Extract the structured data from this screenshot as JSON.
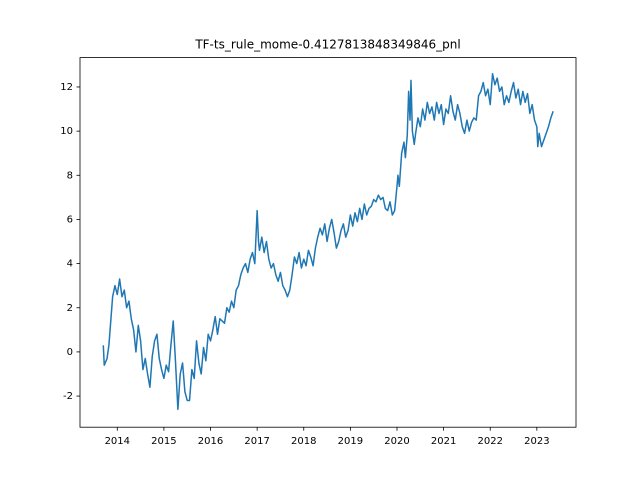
{
  "chart_data": {
    "type": "line",
    "title": "TF-ts_rule_mome-0.4127813848349846_pnl",
    "color": "#1f77b4",
    "x": [
      2013.7,
      2013.72,
      2013.78,
      2013.82,
      2013.9,
      2013.95,
      2014.0,
      2014.05,
      2014.1,
      2014.15,
      2014.2,
      2014.25,
      2014.3,
      2014.35,
      2014.4,
      2014.45,
      2014.5,
      2014.55,
      2014.6,
      2014.65,
      2014.7,
      2014.75,
      2014.8,
      2014.85,
      2014.9,
      2014.95,
      2015.0,
      2015.05,
      2015.1,
      2015.15,
      2015.2,
      2015.25,
      2015.3,
      2015.35,
      2015.4,
      2015.45,
      2015.5,
      2015.55,
      2015.6,
      2015.65,
      2015.7,
      2015.75,
      2015.8,
      2015.85,
      2015.9,
      2015.95,
      2016.0,
      2016.05,
      2016.1,
      2016.15,
      2016.2,
      2016.3,
      2016.35,
      2016.4,
      2016.45,
      2016.5,
      2016.55,
      2016.6,
      2016.65,
      2016.7,
      2016.75,
      2016.8,
      2016.85,
      2016.9,
      2016.95,
      2017.0,
      2017.03,
      2017.05,
      2017.1,
      2017.15,
      2017.2,
      2017.25,
      2017.3,
      2017.35,
      2017.4,
      2017.45,
      2017.5,
      2017.55,
      2017.6,
      2017.65,
      2017.7,
      2017.75,
      2017.8,
      2017.85,
      2017.9,
      2017.95,
      2018.0,
      2018.05,
      2018.1,
      2018.15,
      2018.2,
      2018.25,
      2018.3,
      2018.35,
      2018.4,
      2018.45,
      2018.5,
      2018.55,
      2018.6,
      2018.65,
      2018.7,
      2018.75,
      2018.8,
      2018.85,
      2018.9,
      2018.95,
      2019.0,
      2019.05,
      2019.1,
      2019.15,
      2019.2,
      2019.25,
      2019.3,
      2019.35,
      2019.4,
      2019.45,
      2019.5,
      2019.55,
      2019.6,
      2019.65,
      2019.7,
      2019.75,
      2019.8,
      2019.85,
      2019.9,
      2019.95,
      2020.0,
      2020.02,
      2020.05,
      2020.1,
      2020.15,
      2020.18,
      2020.22,
      2020.25,
      2020.28,
      2020.3,
      2020.33,
      2020.37,
      2020.4,
      2020.45,
      2020.5,
      2020.55,
      2020.6,
      2020.65,
      2020.7,
      2020.75,
      2020.8,
      2020.85,
      2020.9,
      2020.95,
      2021.0,
      2021.05,
      2021.1,
      2021.15,
      2021.2,
      2021.25,
      2021.3,
      2021.35,
      2021.4,
      2021.45,
      2021.5,
      2021.55,
      2021.6,
      2021.65,
      2021.7,
      2021.75,
      2021.8,
      2021.85,
      2021.9,
      2021.95,
      2022.0,
      2022.05,
      2022.1,
      2022.15,
      2022.2,
      2022.25,
      2022.3,
      2022.35,
      2022.4,
      2022.45,
      2022.5,
      2022.55,
      2022.6,
      2022.65,
      2022.7,
      2022.75,
      2022.8,
      2022.85,
      2022.9,
      2022.95,
      2023.0,
      2023.02,
      2023.05,
      2023.1,
      2023.15,
      2023.2,
      2023.25,
      2023.3,
      2023.35
    ],
    "values": [
      0.3,
      -0.6,
      -0.3,
      0.3,
      2.5,
      3.0,
      2.6,
      3.3,
      2.5,
      2.8,
      2.0,
      2.3,
      1.5,
      1.0,
      0.0,
      1.2,
      0.5,
      -0.8,
      -0.3,
      -1.0,
      -1.6,
      -0.2,
      0.5,
      0.8,
      -0.3,
      -0.8,
      -1.2,
      -0.6,
      -0.9,
      0.3,
      1.4,
      -0.5,
      -2.6,
      -1.0,
      -0.5,
      -1.8,
      -2.2,
      -2.2,
      -0.8,
      -1.2,
      0.5,
      -0.5,
      -1.0,
      0.2,
      -0.4,
      0.8,
      0.5,
      1.0,
      1.6,
      0.8,
      1.5,
      1.3,
      2.0,
      1.8,
      2.3,
      2.0,
      2.8,
      3.0,
      3.5,
      3.8,
      4.0,
      3.6,
      4.2,
      4.5,
      4.0,
      6.4,
      5.0,
      4.6,
      5.2,
      4.5,
      5.0,
      4.2,
      3.8,
      4.0,
      3.5,
      3.2,
      3.6,
      3.0,
      2.8,
      2.5,
      2.8,
      3.5,
      4.3,
      4.0,
      4.5,
      3.8,
      4.2,
      3.9,
      4.6,
      4.3,
      3.9,
      4.7,
      5.2,
      5.6,
      5.3,
      5.8,
      5.0,
      5.6,
      6.0,
      5.4,
      4.7,
      5.0,
      5.5,
      5.8,
      5.2,
      5.5,
      6.2,
      5.7,
      6.3,
      5.9,
      6.5,
      6.0,
      6.7,
      6.2,
      6.5,
      6.6,
      6.9,
      6.8,
      7.1,
      6.9,
      7.0,
      6.5,
      6.4,
      6.8,
      6.2,
      6.4,
      7.5,
      8.0,
      7.5,
      9.0,
      9.5,
      8.8,
      9.8,
      11.8,
      10.5,
      12.3,
      10.0,
      9.4,
      9.9,
      10.6,
      10.2,
      11.0,
      10.5,
      11.3,
      10.8,
      11.1,
      10.5,
      11.3,
      10.8,
      11.2,
      10.3,
      11.0,
      10.8,
      11.6,
      10.9,
      10.5,
      11.2,
      10.8,
      10.2,
      9.9,
      10.5,
      10.0,
      10.4,
      10.6,
      10.5,
      11.6,
      11.8,
      12.2,
      11.6,
      11.9,
      11.2,
      12.6,
      12.1,
      12.4,
      11.8,
      12.0,
      11.2,
      11.6,
      11.3,
      11.8,
      12.2,
      11.5,
      11.9,
      11.2,
      11.8,
      11.3,
      11.7,
      10.8,
      11.2,
      10.5,
      10.2,
      9.3,
      9.9,
      9.3,
      9.6,
      9.9,
      10.2,
      10.6,
      10.9
    ],
    "xlim": [
      2013.2,
      2023.84
    ],
    "xticks": [
      2014,
      2015,
      2016,
      2017,
      2018,
      2019,
      2020,
      2021,
      2022,
      2023
    ],
    "ylim": [
      -3.41,
      13.33
    ],
    "yticks": [
      -2,
      0,
      2,
      4,
      6,
      8,
      10,
      12
    ]
  }
}
